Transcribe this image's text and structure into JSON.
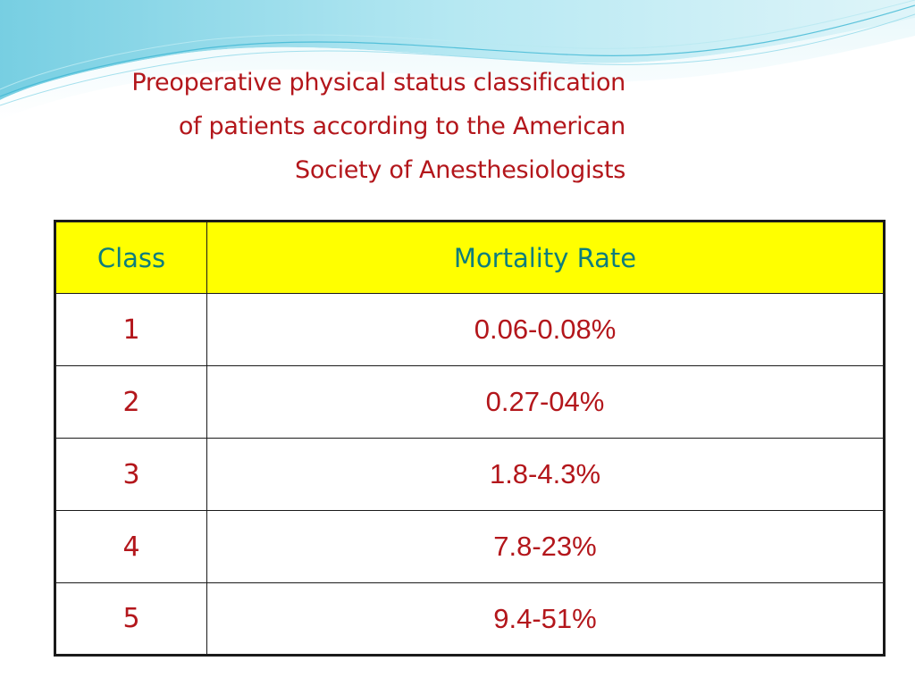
{
  "slide": {
    "title_lines": [
      "Preoperative physical status classification",
      "of patients according to the American",
      "Society of Anesthesiologists"
    ]
  },
  "table": {
    "headers": [
      "Class",
      "Mortality Rate"
    ],
    "rows": [
      {
        "class": "1",
        "rate": "0.06-0.08%"
      },
      {
        "class": "2",
        "rate": "0.27-04%"
      },
      {
        "class": "3",
        "rate": "1.8-4.3%"
      },
      {
        "class": "4",
        "rate": "7.8-23%"
      },
      {
        "class": "5",
        "rate": "9.4-51%"
      }
    ]
  },
  "colors": {
    "title": "#b3161b",
    "header_fill": "#ffff00",
    "header_text": "#0e7d7d",
    "cell_text": "#b3161b",
    "wave": "#7fd3e6"
  }
}
